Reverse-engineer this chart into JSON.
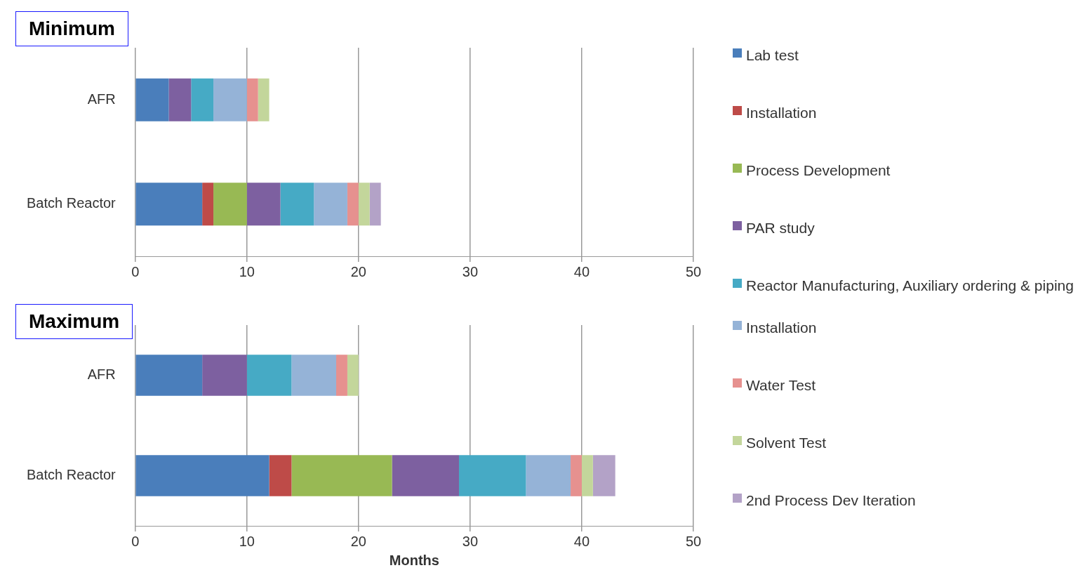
{
  "chart_data": [
    {
      "type": "bar",
      "title": "Minimum",
      "orientation": "horizontal",
      "stacked": true,
      "categories": [
        "AFR",
        "Batch Reactor"
      ],
      "xlim": [
        0,
        50
      ],
      "xticks": [
        0,
        10,
        20,
        30,
        40,
        50
      ],
      "grid": "x",
      "legend": "right",
      "series": [
        {
          "name": "Lab test",
          "color": "#4a7ebb",
          "values": [
            3,
            6
          ]
        },
        {
          "name": "Installation",
          "color": "#be4b48",
          "values": [
            0,
            1
          ]
        },
        {
          "name": "Process Development",
          "color": "#98b954",
          "values": [
            0,
            3
          ]
        },
        {
          "name": "PAR study",
          "color": "#7d60a0",
          "values": [
            2,
            3
          ]
        },
        {
          "name": "Reactor Manufacturing, Auxiliary ordering & piping",
          "color": "#46aac5",
          "values": [
            2,
            3
          ]
        },
        {
          "name": "Installation",
          "color": "#95b3d7",
          "values": [
            3,
            3
          ]
        },
        {
          "name": "Water Test",
          "color": "#e6918f",
          "values": [
            1,
            1
          ]
        },
        {
          "name": "Solvent Test",
          "color": "#c3d69b",
          "values": [
            1,
            1
          ]
        },
        {
          "name": "2nd Process Dev Iteration",
          "color": "#b3a2c7",
          "values": [
            0,
            1
          ]
        }
      ]
    },
    {
      "type": "bar",
      "title": "Maximum",
      "orientation": "horizontal",
      "stacked": true,
      "categories": [
        "AFR",
        "Batch Reactor"
      ],
      "xlim": [
        0,
        50
      ],
      "xticks": [
        0,
        10,
        20,
        30,
        40,
        50
      ],
      "grid": "x",
      "xlabel": "Months",
      "series": [
        {
          "color": "#4a7ebb",
          "values": [
            6,
            12
          ]
        },
        {
          "color": "#be4b48",
          "values": [
            0,
            2
          ]
        },
        {
          "color": "#98b954",
          "values": [
            0,
            9
          ]
        },
        {
          "color": "#7d60a0",
          "values": [
            4,
            6
          ]
        },
        {
          "color": "#46aac5",
          "values": [
            4,
            6
          ]
        },
        {
          "color": "#95b3d7",
          "values": [
            4,
            4
          ]
        },
        {
          "color": "#e6918f",
          "values": [
            1,
            1
          ]
        },
        {
          "color": "#c3d69b",
          "values": [
            1,
            1
          ]
        },
        {
          "color": "#b3a2c7",
          "values": [
            0,
            2
          ]
        }
      ]
    }
  ]
}
